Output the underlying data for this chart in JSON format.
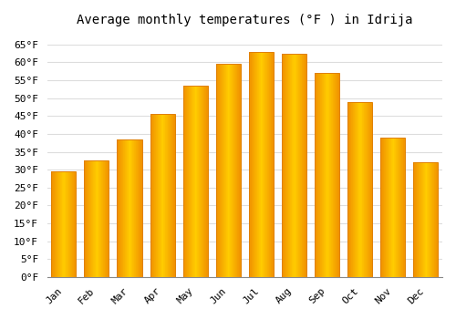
{
  "title": "Average monthly temperatures (°F ) in Idrija",
  "months": [
    "Jan",
    "Feb",
    "Mar",
    "Apr",
    "May",
    "Jun",
    "Jul",
    "Aug",
    "Sep",
    "Oct",
    "Nov",
    "Dec"
  ],
  "values": [
    29.5,
    32.5,
    38.5,
    45.5,
    53.5,
    59.5,
    63.0,
    62.5,
    57.0,
    49.0,
    39.0,
    32.0
  ],
  "bar_color_center": "#FFBB00",
  "bar_color_edge": "#F09000",
  "bar_edge_color": "#E08000",
  "ylim": [
    0,
    68
  ],
  "yticks": [
    0,
    5,
    10,
    15,
    20,
    25,
    30,
    35,
    40,
    45,
    50,
    55,
    60,
    65
  ],
  "ytick_labels": [
    "0°F",
    "5°F",
    "10°F",
    "15°F",
    "20°F",
    "25°F",
    "30°F",
    "35°F",
    "40°F",
    "45°F",
    "50°F",
    "55°F",
    "60°F",
    "65°F"
  ],
  "background_color": "#FFFFFF",
  "grid_color": "#DDDDDD",
  "title_fontsize": 10,
  "tick_fontsize": 8,
  "font_family": "monospace",
  "bar_width": 0.75
}
